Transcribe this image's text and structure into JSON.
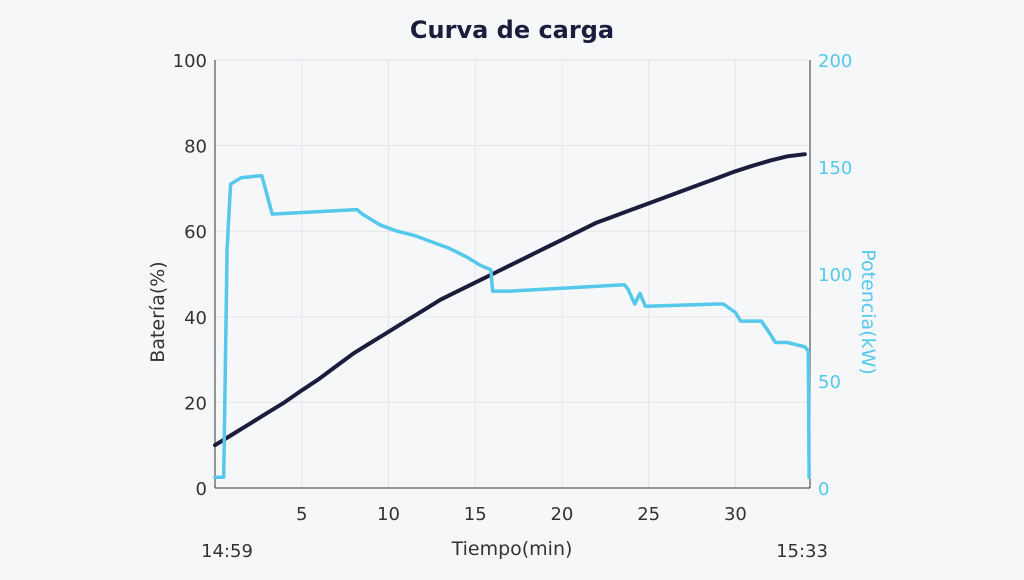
{
  "chart_data": {
    "type": "line",
    "title": "Curva de carga",
    "xlabel": "Tiempo(min)",
    "ylabel": "Batería(%)",
    "y2label": "Potencia(kW)",
    "xlim": [
      0,
      34.3
    ],
    "ylim": [
      0,
      100
    ],
    "y2lim": [
      0,
      200
    ],
    "xticks": [
      5,
      10,
      15,
      20,
      25,
      30
    ],
    "yticks": [
      0,
      20,
      40,
      60,
      80,
      100
    ],
    "y2ticks": [
      0,
      50,
      100,
      150,
      200
    ],
    "start_time": "14:59",
    "end_time": "15:33",
    "grid": true,
    "colors": {
      "battery": "#1c1c3c",
      "power": "#55c8ec",
      "grid": "#e4e6ea",
      "axis": "#333333"
    },
    "series": [
      {
        "key": "battery",
        "axis": "left",
        "x": [
          0,
          1,
          2,
          3,
          4,
          5,
          6,
          7,
          8,
          9,
          10,
          11,
          12,
          13,
          14,
          15,
          16,
          17,
          18,
          19,
          20,
          21,
          22,
          23,
          24,
          25,
          26,
          27,
          28,
          29,
          30,
          31,
          32,
          33,
          34
        ],
        "values": [
          10,
          12.5,
          15,
          17.5,
          20,
          22.8,
          25.5,
          28.5,
          31.5,
          34,
          36.5,
          39,
          41.5,
          44,
          46,
          48,
          50,
          52,
          54,
          56,
          58,
          60,
          62,
          63.5,
          65,
          66.5,
          68,
          69.5,
          71,
          72.5,
          74,
          75.3,
          76.5,
          77.5,
          78
        ]
      },
      {
        "key": "power",
        "axis": "right",
        "x": [
          0,
          0.5,
          0.7,
          0.9,
          1.5,
          2.7,
          3.3,
          8,
          8.2,
          8.5,
          9.5,
          10.5,
          11.5,
          12.5,
          13.5,
          14.5,
          15.3,
          15.9,
          16,
          17,
          23.6,
          23.8,
          24.2,
          24.5,
          24.8,
          25.1,
          29,
          29.3,
          30,
          30.3,
          31.5,
          32,
          32.3,
          33,
          34,
          34.2,
          34.25
        ],
        "values": [
          5,
          5,
          112,
          142,
          145,
          146,
          128,
          130,
          130,
          128,
          123,
          120,
          118,
          115,
          112,
          108,
          104,
          102,
          92,
          92,
          95,
          93,
          86,
          91,
          85,
          85,
          86,
          86,
          82,
          78,
          78,
          72,
          68,
          68,
          66,
          64,
          5
        ]
      }
    ]
  }
}
